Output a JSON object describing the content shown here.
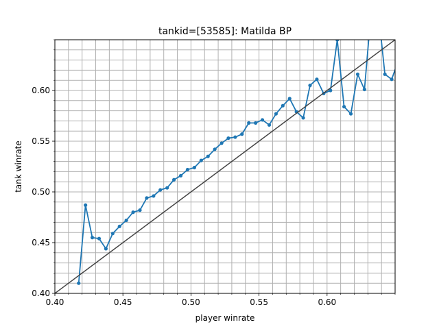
{
  "chart_data": {
    "type": "line",
    "title": "tankid=[53585]: Matilda BP",
    "xlabel": "player winrate",
    "ylabel": "tank winrate",
    "xlim": [
      0.4,
      0.65
    ],
    "ylim": [
      0.4,
      0.65
    ],
    "xticks": [
      "0.40",
      "0.45",
      "0.50",
      "0.55",
      "0.60"
    ],
    "yticks": [
      "0.40",
      "0.45",
      "0.50",
      "0.55",
      "0.60"
    ],
    "x_tick_values": [
      0.4,
      0.45,
      0.5,
      0.55,
      0.6
    ],
    "y_tick_values": [
      0.4,
      0.45,
      0.5,
      0.55,
      0.6
    ],
    "minor_step": 0.01,
    "grid": true,
    "series": [
      {
        "color": "#1f77b4",
        "marker": "circle",
        "x": [
          0.4175,
          0.4225,
          0.4275,
          0.4325,
          0.4375,
          0.4425,
          0.4475,
          0.4525,
          0.4575,
          0.4625,
          0.4675,
          0.4725,
          0.4775,
          0.4825,
          0.4875,
          0.4925,
          0.4975,
          0.5025,
          0.5075,
          0.5125,
          0.5175,
          0.5225,
          0.5275,
          0.5325,
          0.5375,
          0.5425,
          0.5475,
          0.5525,
          0.5575,
          0.5625,
          0.5675,
          0.5725,
          0.5775,
          0.5825,
          0.5875,
          0.5925,
          0.5975,
          0.6025,
          0.6075,
          0.6125,
          0.6175,
          0.6225,
          0.6275,
          0.6325,
          0.6375,
          0.6425,
          0.6475,
          0.6525
        ],
        "y": [
          0.41,
          0.487,
          0.455,
          0.454,
          0.444,
          0.459,
          0.466,
          0.472,
          0.48,
          0.482,
          0.494,
          0.496,
          0.502,
          0.504,
          0.512,
          0.516,
          0.522,
          0.524,
          0.531,
          0.535,
          0.542,
          0.548,
          0.553,
          0.554,
          0.557,
          0.568,
          0.568,
          0.571,
          0.566,
          0.577,
          0.585,
          0.592,
          0.579,
          0.573,
          0.605,
          0.611,
          0.597,
          0.6,
          0.65,
          0.584,
          0.577,
          0.616,
          0.601,
          0.68,
          0.68,
          0.616,
          0.611,
          0.63
        ]
      },
      {
        "color": "#444444",
        "marker": "none",
        "x": [
          0.4,
          0.65
        ],
        "y": [
          0.4,
          0.65
        ]
      }
    ]
  }
}
